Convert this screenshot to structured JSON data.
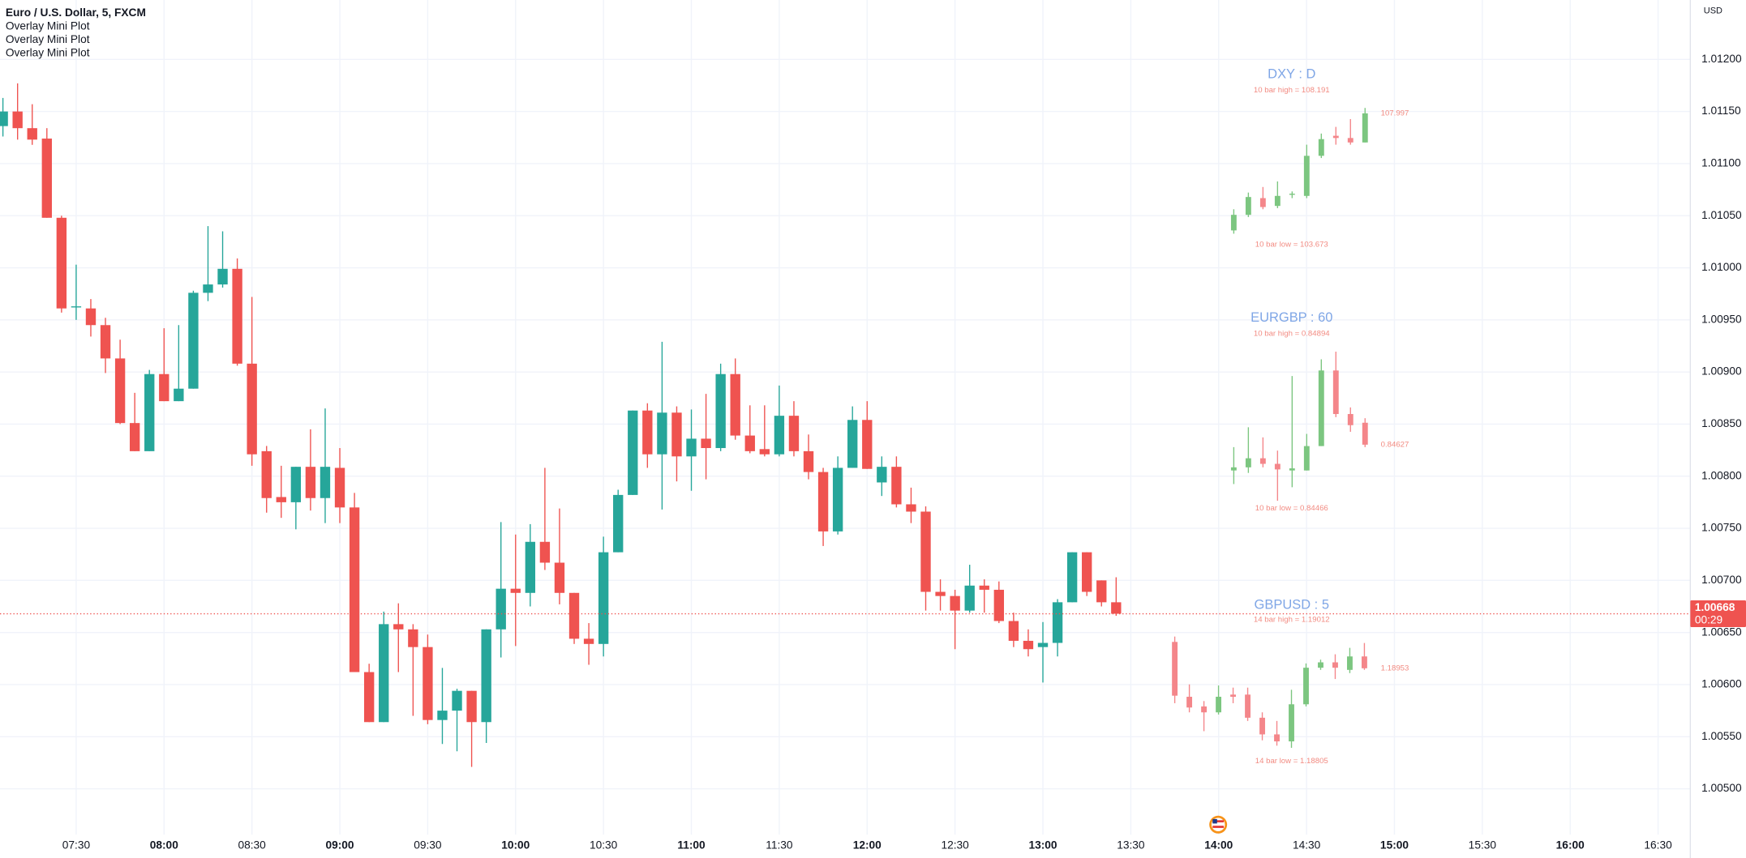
{
  "chart_data": {
    "type": "candlestick",
    "title": "Euro / U.S. Dollar, 5, FXCM",
    "indicators": [
      "Overlay Mini Plot",
      "Overlay Mini Plot",
      "Overlay Mini Plot"
    ],
    "currency": "USD",
    "up_color": "#26a69a",
    "down_color": "#ef5350",
    "grid": true,
    "x": [
      "07:05",
      "07:10",
      "07:15",
      "07:20",
      "07:25",
      "07:30",
      "07:35",
      "07:40",
      "07:45",
      "07:50",
      "07:55",
      "08:00",
      "08:05",
      "08:10",
      "08:15",
      "08:20",
      "08:25",
      "08:30",
      "08:35",
      "08:40",
      "08:45",
      "08:50",
      "08:55",
      "09:00",
      "09:05",
      "09:10",
      "09:15",
      "09:20",
      "09:25",
      "09:30",
      "09:35",
      "09:40",
      "09:45",
      "09:50",
      "09:55",
      "10:00",
      "10:05",
      "10:10",
      "10:15",
      "10:20",
      "10:25",
      "10:30",
      "10:35",
      "10:40",
      "10:45",
      "10:50",
      "10:55",
      "11:00",
      "11:05",
      "11:10",
      "11:15",
      "11:20",
      "11:25",
      "11:30",
      "11:35",
      "11:40",
      "11:45",
      "11:50",
      "11:55",
      "12:00",
      "12:05",
      "12:10",
      "12:15",
      "12:20",
      "12:25",
      "12:30",
      "12:35",
      "12:40",
      "12:45",
      "12:50",
      "12:55",
      "13:00",
      "13:05",
      "13:10",
      "13:15",
      "13:20",
      "13:25"
    ],
    "open": [
      1.01136,
      1.0115,
      1.01134,
      1.01124,
      1.01048,
      1.00962,
      1.00961,
      1.00945,
      1.00913,
      1.00851,
      1.00824,
      1.00898,
      1.00872,
      1.00884,
      1.00976,
      1.00984,
      1.00999,
      1.00908,
      1.00824,
      1.0078,
      1.00775,
      1.00809,
      1.00779,
      1.00808,
      1.0077,
      1.00612,
      1.00564,
      1.00658,
      1.00653,
      1.00636,
      1.00566,
      1.00575,
      1.00594,
      1.00564,
      1.00653,
      1.00692,
      1.00688,
      1.00737,
      1.00717,
      1.00688,
      1.00644,
      1.00639,
      1.00727,
      1.00782,
      1.00863,
      1.00821,
      1.00861,
      1.00819,
      1.00836,
      1.00827,
      1.00898,
      1.00839,
      1.00826,
      1.00821,
      1.00858,
      1.00824,
      1.00804,
      1.00747,
      1.00808,
      1.00854,
      1.00794,
      1.00809,
      1.00773,
      1.00766,
      1.00689,
      1.00685,
      1.00671,
      1.00695,
      1.00691,
      1.00661,
      1.00642,
      1.00636,
      1.0064,
      1.00679,
      1.00727,
      1.007,
      1.00679
    ],
    "high": [
      1.01163,
      1.01177,
      1.01157,
      1.01134,
      1.0105,
      1.01003,
      1.0097,
      1.00952,
      1.00931,
      1.0088,
      1.00902,
      1.00942,
      1.00945,
      1.00978,
      1.0104,
      1.01035,
      1.01009,
      1.00972,
      1.00829,
      1.0081,
      1.00809,
      1.00845,
      1.00865,
      1.00827,
      1.00784,
      1.0062,
      1.0067,
      1.00678,
      1.00658,
      1.00648,
      1.00616,
      1.00596,
      1.00594,
      1.00653,
      1.00756,
      1.00744,
      1.00754,
      1.00808,
      1.00769,
      1.00688,
      1.00659,
      1.00742,
      1.00787,
      1.00863,
      1.0087,
      1.00929,
      1.00867,
      1.00864,
      1.00879,
      1.00908,
      1.00913,
      1.00868,
      1.00868,
      1.00887,
      1.00872,
      1.0084,
      1.00808,
      1.00819,
      1.00867,
      1.00872,
      1.00819,
      1.00819,
      1.00789,
      1.00771,
      1.00701,
      1.00691,
      1.00715,
      1.00701,
      1.00699,
      1.00669,
      1.00653,
      1.0066,
      1.00682,
      1.00727,
      1.00727,
      1.007,
      1.00703
    ],
    "low": [
      1.01126,
      1.01123,
      1.01118,
      1.01048,
      1.00957,
      1.0095,
      1.00934,
      1.00899,
      1.0085,
      1.00824,
      1.00824,
      1.00872,
      1.00872,
      1.00884,
      1.00968,
      1.00981,
      1.00906,
      1.0081,
      1.00765,
      1.0076,
      1.00749,
      1.00767,
      1.00755,
      1.00755,
      1.00612,
      1.00564,
      1.00564,
      1.00612,
      1.0057,
      1.00562,
      1.00543,
      1.00536,
      1.00521,
      1.00544,
      1.00626,
      1.00637,
      1.00675,
      1.0071,
      1.00677,
      1.00639,
      1.00619,
      1.00627,
      1.00727,
      1.00782,
      1.00808,
      1.00768,
      1.00795,
      1.00786,
      1.00797,
      1.00824,
      1.00835,
      1.00822,
      1.00819,
      1.00819,
      1.00819,
      1.00797,
      1.00733,
      1.00744,
      1.00808,
      1.00807,
      1.00781,
      1.0077,
      1.00755,
      1.00671,
      1.00671,
      1.00634,
      1.00669,
      1.00669,
      1.00659,
      1.00636,
      1.00627,
      1.00602,
      1.00627,
      1.00679,
      1.00685,
      1.00675,
      1.00666
    ],
    "close": [
      1.0115,
      1.01134,
      1.01123,
      1.01048,
      1.00961,
      1.00963,
      1.00945,
      1.00913,
      1.00851,
      1.00824,
      1.00898,
      1.00872,
      1.00884,
      1.00976,
      1.00984,
      1.00999,
      1.00908,
      1.00821,
      1.00779,
      1.00775,
      1.00809,
      1.00779,
      1.00809,
      1.0077,
      1.00612,
      1.00564,
      1.00658,
      1.00653,
      1.00636,
      1.00566,
      1.00575,
      1.00594,
      1.00564,
      1.00653,
      1.00692,
      1.00688,
      1.00737,
      1.00717,
      1.00688,
      1.00644,
      1.00639,
      1.00727,
      1.00782,
      1.00863,
      1.00821,
      1.00861,
      1.00819,
      1.00836,
      1.00827,
      1.00898,
      1.00839,
      1.00824,
      1.00821,
      1.00858,
      1.00824,
      1.00804,
      1.00747,
      1.00808,
      1.00854,
      1.00807,
      1.00809,
      1.00773,
      1.00766,
      1.00689,
      1.00685,
      1.00671,
      1.00695,
      1.00691,
      1.00661,
      1.00642,
      1.00634,
      1.0064,
      1.00679,
      1.00727,
      1.00689,
      1.00679,
      1.00668
    ],
    "xlim": [
      "07:04",
      "16:41"
    ],
    "xticks": [
      "07:30",
      "08:00",
      "08:30",
      "09:00",
      "09:30",
      "10:00",
      "10:30",
      "11:00",
      "11:30",
      "12:00",
      "12:30",
      "13:00",
      "13:30",
      "14:00",
      "14:30",
      "15:00",
      "15:30",
      "16:00",
      "16:30"
    ],
    "ylim": [
      1.00456,
      1.01257
    ],
    "yticks": [
      {
        "value": 1.005,
        "label": "1.00500"
      },
      {
        "value": 1.0055,
        "label": "1.00550"
      },
      {
        "value": 1.006,
        "label": "1.00600"
      },
      {
        "value": 1.0065,
        "label": "1.00650"
      },
      {
        "value": 1.007,
        "label": "1.00700"
      },
      {
        "value": 1.0075,
        "label": "1.00750"
      },
      {
        "value": 1.008,
        "label": "1.00800"
      },
      {
        "value": 1.0085,
        "label": "1.00850"
      },
      {
        "value": 1.009,
        "label": "1.00900"
      },
      {
        "value": 1.0095,
        "label": "1.00950"
      },
      {
        "value": 1.01,
        "label": "1.01000"
      },
      {
        "value": 1.0105,
        "label": "1.01050"
      },
      {
        "value": 1.011,
        "label": "1.01100"
      },
      {
        "value": 1.0115,
        "label": "1.01150"
      },
      {
        "value": 1.012,
        "label": "1.01200"
      }
    ],
    "last_price": {
      "value": 1.00668,
      "label": "1.00668"
    },
    "countdown": "00:29",
    "overlay_up_color": "#7cc680",
    "overlay_down_color": "#f4868a",
    "overlays": [
      {
        "title": "DXY : D",
        "high": {
          "value": 108.191,
          "label": "10 bar high = 108.191"
        },
        "low": {
          "value": 103.673,
          "label": "10 bar low = 103.673"
        },
        "last": {
          "value": 107.997,
          "label": "107.997"
        },
        "opens": [
          103.791,
          104.351,
          104.951,
          104.671,
          105.07,
          105.031,
          106.471,
          107.191,
          107.111,
          106.951
        ],
        "highs": [
          104.551,
          105.151,
          105.351,
          105.551,
          105.191,
          106.871,
          107.271,
          107.511,
          107.791,
          108.191
        ],
        "lows": [
          103.673,
          104.271,
          104.551,
          104.591,
          104.951,
          104.951,
          106.391,
          106.871,
          106.871,
          106.951
        ],
        "closes": [
          104.351,
          104.991,
          104.631,
          105.031,
          105.111,
          106.471,
          107.071,
          107.111,
          106.951,
          107.997
        ]
      },
      {
        "title": "EURGBP : 60",
        "high": {
          "value": 0.84894,
          "label": "10 bar high = 0.84894"
        },
        "low": {
          "value": 0.84466,
          "label": "10 bar low = 0.84466"
        },
        "last": {
          "value": 0.84627,
          "label": "0.84627"
        },
        "opens": [
          0.84553,
          0.84562,
          0.84588,
          0.84572,
          0.84553,
          0.84553,
          0.84623,
          0.8484,
          0.84715,
          0.8469
        ],
        "highs": [
          0.8462,
          0.84677,
          0.84648,
          0.8461,
          0.84824,
          0.84658,
          0.84872,
          0.84894,
          0.84734,
          0.84703
        ],
        "lows": [
          0.84514,
          0.84546,
          0.84562,
          0.84466,
          0.84505,
          0.84553,
          0.84623,
          0.84706,
          0.84664,
          0.8462
        ],
        "closes": [
          0.84562,
          0.84588,
          0.84572,
          0.84556,
          0.84559,
          0.84623,
          0.8484,
          0.84715,
          0.84683,
          0.84627
        ]
      },
      {
        "title": "GBPUSD : 5",
        "high": {
          "value": 1.19012,
          "label": "14 bar high = 1.19012"
        },
        "low": {
          "value": 1.18805,
          "label": "14 bar low = 1.18805"
        },
        "last": {
          "value": 1.18953,
          "label": "1.18953"
        },
        "opens": [
          1.19002,
          1.189,
          1.18882,
          1.18871,
          1.18904,
          1.18904,
          1.18861,
          1.1883,
          1.18817,
          1.18886,
          1.18954,
          1.18964,
          1.1895,
          1.18975
        ],
        "highs": [
          1.19012,
          1.18923,
          1.18892,
          1.18921,
          1.18917,
          1.18917,
          1.18871,
          1.18855,
          1.18913,
          1.18962,
          1.18969,
          1.18979,
          1.18991,
          1.19
        ],
        "lows": [
          1.18888,
          1.18871,
          1.18836,
          1.18867,
          1.18888,
          1.18855,
          1.18819,
          1.18809,
          1.18805,
          1.18882,
          1.1895,
          1.18933,
          1.18944,
          1.1895
        ],
        "closes": [
          1.18902,
          1.1888,
          1.18871,
          1.189,
          1.189,
          1.18861,
          1.1883,
          1.18817,
          1.18886,
          1.18954,
          1.18964,
          1.18954,
          1.18975,
          1.18953
        ]
      }
    ]
  }
}
